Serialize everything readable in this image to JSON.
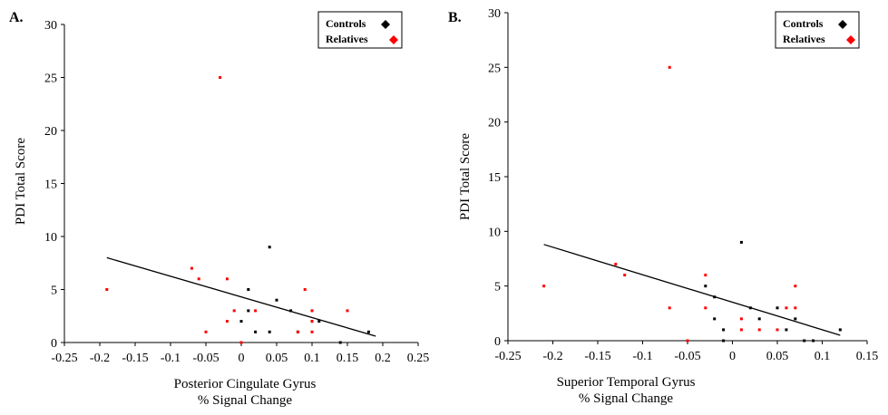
{
  "chart_data": [
    {
      "type": "scatter",
      "panel_label": "A.",
      "xlabel": "Posterior Cingulate Gyrus",
      "xlabel2": "% Signal Change",
      "ylabel": "PDI Total Score",
      "xlim": [
        -0.25,
        0.25
      ],
      "ylim": [
        0,
        30
      ],
      "xticks": [
        "-0.25",
        "-0.2",
        "-0.15",
        "-0.1",
        "-0.05",
        "0",
        "0.05",
        "0.1",
        "0.15",
        "0.2",
        "0.25"
      ],
      "yticks": [
        "0",
        "5",
        "10",
        "15",
        "20",
        "25",
        "30"
      ],
      "grid": false,
      "legend_position": "top-right",
      "series": [
        {
          "name": "Controls",
          "color": "#000000",
          "points": [
            [
              0.04,
              9
            ],
            [
              0.01,
              5
            ],
            [
              0.05,
              4
            ],
            [
              0.07,
              3
            ],
            [
              0.01,
              3
            ],
            [
              0.0,
              2
            ],
            [
              0.1,
              2
            ],
            [
              0.11,
              2
            ],
            [
              0.02,
              1
            ],
            [
              0.04,
              1
            ],
            [
              0.08,
              1
            ],
            [
              0.18,
              1
            ],
            [
              0.14,
              0
            ]
          ]
        },
        {
          "name": "Relatives",
          "color": "#ff0000",
          "points": [
            [
              -0.03,
              25
            ],
            [
              -0.07,
              7
            ],
            [
              -0.06,
              6
            ],
            [
              -0.02,
              6
            ],
            [
              -0.19,
              5
            ],
            [
              0.09,
              5
            ],
            [
              -0.01,
              3
            ],
            [
              0.02,
              3
            ],
            [
              0.1,
              3
            ],
            [
              0.15,
              3
            ],
            [
              -0.02,
              2
            ],
            [
              0.1,
              2
            ],
            [
              -0.05,
              1
            ],
            [
              0.08,
              1
            ],
            [
              0.1,
              1
            ],
            [
              0.0,
              0
            ]
          ]
        }
      ],
      "fit_line": [
        [
          -0.19,
          8
        ],
        [
          0.19,
          0.6
        ]
      ]
    },
    {
      "type": "scatter",
      "panel_label": "B.",
      "xlabel": "Superior Temporal Gyrus",
      "xlabel2": "% Signal Change",
      "ylabel": "PDI Total Score",
      "xlim": [
        -0.25,
        0.15
      ],
      "ylim": [
        0,
        30
      ],
      "xticks": [
        "-0.25",
        "-0.2",
        "-0.15",
        "-0.1",
        "-0.05",
        "0",
        "0.05",
        "0.1",
        "0.15"
      ],
      "yticks": [
        "0",
        "5",
        "10",
        "15",
        "20",
        "25",
        "30"
      ],
      "grid": false,
      "legend_position": "top-right",
      "series": [
        {
          "name": "Controls",
          "color": "#000000",
          "points": [
            [
              0.01,
              9
            ],
            [
              -0.03,
              5
            ],
            [
              -0.02,
              4
            ],
            [
              0.02,
              3
            ],
            [
              0.05,
              3
            ],
            [
              -0.02,
              2
            ],
            [
              0.03,
              2
            ],
            [
              0.07,
              2
            ],
            [
              -0.01,
              1
            ],
            [
              0.06,
              1
            ],
            [
              0.12,
              1
            ],
            [
              -0.01,
              0
            ],
            [
              0.08,
              0
            ],
            [
              0.09,
              0
            ]
          ]
        },
        {
          "name": "Relatives",
          "color": "#ff0000",
          "points": [
            [
              -0.07,
              25
            ],
            [
              -0.13,
              7
            ],
            [
              -0.12,
              6
            ],
            [
              -0.03,
              6
            ],
            [
              -0.21,
              5
            ],
            [
              0.07,
              5
            ],
            [
              -0.07,
              3
            ],
            [
              -0.03,
              3
            ],
            [
              0.06,
              3
            ],
            [
              0.07,
              3
            ],
            [
              0.01,
              2
            ],
            [
              0.01,
              1
            ],
            [
              0.03,
              1
            ],
            [
              0.05,
              1
            ],
            [
              -0.05,
              0
            ]
          ]
        }
      ],
      "fit_line": [
        [
          -0.21,
          8.8
        ],
        [
          0.12,
          0.5
        ]
      ]
    }
  ]
}
